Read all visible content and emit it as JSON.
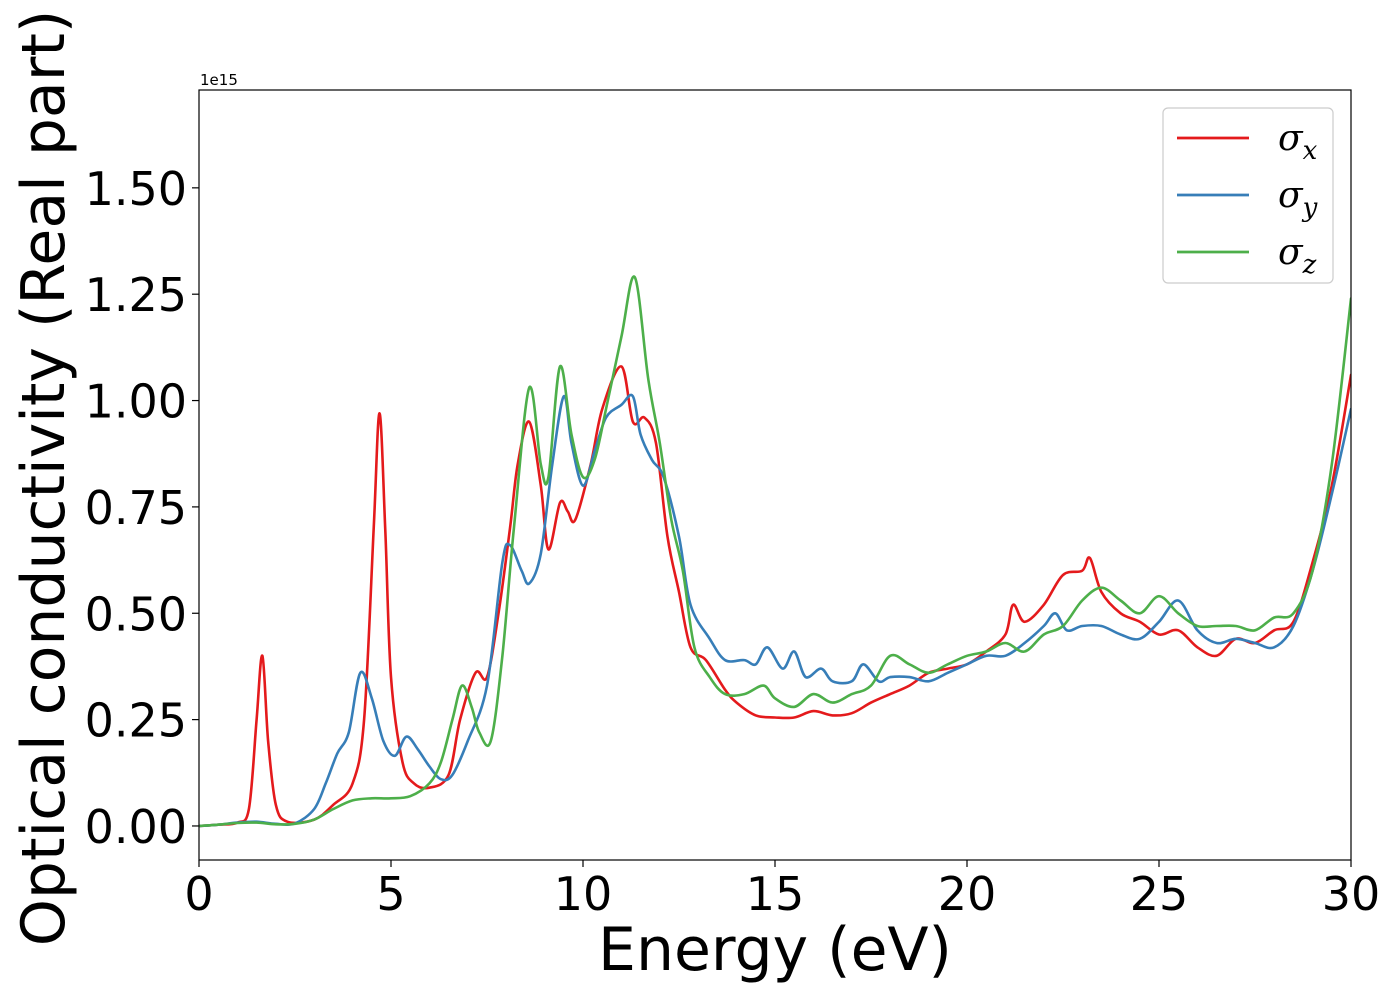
{
  "chart_data": {
    "type": "line",
    "xlabel": "Energy (eV)",
    "ylabel": "Optical conductivity (Real part)",
    "y_offset_label": "1e15",
    "xlim": [
      0,
      30
    ],
    "ylim": [
      -0.08,
      1.73
    ],
    "x_ticks": [
      0,
      5,
      10,
      15,
      20,
      25,
      30
    ],
    "x_tick_labels": [
      "0",
      "5",
      "10",
      "15",
      "20",
      "25",
      "30"
    ],
    "y_ticks": [
      0.0,
      0.25,
      0.5,
      0.75,
      1.0,
      1.25,
      1.5
    ],
    "y_tick_labels": [
      "0.00",
      "0.25",
      "0.50",
      "0.75",
      "1.00",
      "1.25",
      "1.50"
    ],
    "grid": false,
    "legend_position": "top-right",
    "series": [
      {
        "name": "σx",
        "symbol": "σ",
        "subscript": "x",
        "color": "#e41a1c",
        "points": [
          [
            0,
            0
          ],
          [
            0.5,
            0.003
          ],
          [
            1.0,
            0.008
          ],
          [
            1.3,
            0.04
          ],
          [
            1.5,
            0.25
          ],
          [
            1.65,
            0.4
          ],
          [
            1.8,
            0.2
          ],
          [
            2.0,
            0.05
          ],
          [
            2.3,
            0.01
          ],
          [
            3.0,
            0.015
          ],
          [
            3.5,
            0.05
          ],
          [
            4.0,
            0.1
          ],
          [
            4.3,
            0.25
          ],
          [
            4.55,
            0.7
          ],
          [
            4.7,
            0.97
          ],
          [
            4.85,
            0.7
          ],
          [
            5.0,
            0.35
          ],
          [
            5.3,
            0.15
          ],
          [
            5.6,
            0.1
          ],
          [
            6.0,
            0.09
          ],
          [
            6.5,
            0.12
          ],
          [
            6.8,
            0.25
          ],
          [
            7.2,
            0.36
          ],
          [
            7.5,
            0.35
          ],
          [
            7.8,
            0.5
          ],
          [
            8.1,
            0.7
          ],
          [
            8.3,
            0.85
          ],
          [
            8.6,
            0.95
          ],
          [
            8.9,
            0.8
          ],
          [
            9.1,
            0.65
          ],
          [
            9.4,
            0.76
          ],
          [
            9.6,
            0.74
          ],
          [
            9.8,
            0.72
          ],
          [
            10.2,
            0.85
          ],
          [
            10.5,
            0.98
          ],
          [
            11.0,
            1.08
          ],
          [
            11.3,
            0.95
          ],
          [
            11.6,
            0.96
          ],
          [
            11.9,
            0.9
          ],
          [
            12.2,
            0.68
          ],
          [
            12.5,
            0.55
          ],
          [
            12.8,
            0.42
          ],
          [
            13.2,
            0.39
          ],
          [
            13.7,
            0.32
          ],
          [
            14.0,
            0.29
          ],
          [
            14.5,
            0.26
          ],
          [
            15.0,
            0.255
          ],
          [
            15.5,
            0.255
          ],
          [
            16.0,
            0.27
          ],
          [
            16.5,
            0.26
          ],
          [
            17.0,
            0.265
          ],
          [
            17.5,
            0.29
          ],
          [
            18.0,
            0.31
          ],
          [
            18.5,
            0.33
          ],
          [
            19.0,
            0.36
          ],
          [
            19.5,
            0.37
          ],
          [
            20.0,
            0.38
          ],
          [
            20.5,
            0.41
          ],
          [
            21.0,
            0.45
          ],
          [
            21.2,
            0.52
          ],
          [
            21.5,
            0.48
          ],
          [
            22.0,
            0.52
          ],
          [
            22.5,
            0.59
          ],
          [
            23.0,
            0.6
          ],
          [
            23.2,
            0.63
          ],
          [
            23.5,
            0.55
          ],
          [
            24.0,
            0.5
          ],
          [
            24.5,
            0.48
          ],
          [
            25.0,
            0.45
          ],
          [
            25.5,
            0.46
          ],
          [
            26.0,
            0.42
          ],
          [
            26.5,
            0.4
          ],
          [
            27.0,
            0.44
          ],
          [
            27.5,
            0.43
          ],
          [
            28.0,
            0.46
          ],
          [
            28.5,
            0.48
          ],
          [
            29.0,
            0.62
          ],
          [
            29.5,
            0.8
          ],
          [
            30.0,
            1.06
          ]
        ]
      },
      {
        "name": "σy",
        "symbol": "σ",
        "subscript": "y",
        "color": "#377eb8",
        "points": [
          [
            0,
            0
          ],
          [
            0.5,
            0.003
          ],
          [
            1.0,
            0.008
          ],
          [
            1.5,
            0.01
          ],
          [
            2.0,
            0.005
          ],
          [
            2.5,
            0.006
          ],
          [
            3.0,
            0.04
          ],
          [
            3.3,
            0.1
          ],
          [
            3.6,
            0.17
          ],
          [
            3.9,
            0.22
          ],
          [
            4.2,
            0.36
          ],
          [
            4.5,
            0.3
          ],
          [
            4.8,
            0.2
          ],
          [
            5.1,
            0.165
          ],
          [
            5.4,
            0.21
          ],
          [
            5.7,
            0.18
          ],
          [
            6.0,
            0.14
          ],
          [
            6.3,
            0.11
          ],
          [
            6.6,
            0.12
          ],
          [
            7.0,
            0.2
          ],
          [
            7.5,
            0.33
          ],
          [
            7.9,
            0.62
          ],
          [
            8.1,
            0.66
          ],
          [
            8.4,
            0.6
          ],
          [
            8.6,
            0.57
          ],
          [
            8.9,
            0.64
          ],
          [
            9.2,
            0.85
          ],
          [
            9.5,
            1.01
          ],
          [
            9.7,
            0.9
          ],
          [
            10.0,
            0.8
          ],
          [
            10.3,
            0.88
          ],
          [
            10.6,
            0.96
          ],
          [
            11.0,
            0.99
          ],
          [
            11.3,
            1.01
          ],
          [
            11.5,
            0.92
          ],
          [
            11.8,
            0.86
          ],
          [
            12.1,
            0.82
          ],
          [
            12.5,
            0.68
          ],
          [
            12.8,
            0.52
          ],
          [
            13.3,
            0.44
          ],
          [
            13.7,
            0.39
          ],
          [
            14.2,
            0.39
          ],
          [
            14.5,
            0.38
          ],
          [
            14.8,
            0.42
          ],
          [
            15.2,
            0.37
          ],
          [
            15.5,
            0.41
          ],
          [
            15.8,
            0.35
          ],
          [
            16.2,
            0.37
          ],
          [
            16.5,
            0.34
          ],
          [
            17.0,
            0.34
          ],
          [
            17.3,
            0.38
          ],
          [
            17.7,
            0.34
          ],
          [
            18.0,
            0.35
          ],
          [
            18.5,
            0.35
          ],
          [
            19.0,
            0.34
          ],
          [
            19.5,
            0.36
          ],
          [
            20.0,
            0.38
          ],
          [
            20.5,
            0.4
          ],
          [
            21.0,
            0.4
          ],
          [
            21.5,
            0.43
          ],
          [
            22.0,
            0.47
          ],
          [
            22.3,
            0.5
          ],
          [
            22.6,
            0.46
          ],
          [
            23.0,
            0.47
          ],
          [
            23.5,
            0.47
          ],
          [
            24.0,
            0.45
          ],
          [
            24.5,
            0.44
          ],
          [
            25.0,
            0.48
          ],
          [
            25.5,
            0.53
          ],
          [
            26.0,
            0.46
          ],
          [
            26.5,
            0.43
          ],
          [
            27.0,
            0.44
          ],
          [
            27.5,
            0.43
          ],
          [
            28.0,
            0.42
          ],
          [
            28.5,
            0.47
          ],
          [
            29.0,
            0.6
          ],
          [
            29.5,
            0.78
          ],
          [
            30.0,
            0.98
          ]
        ]
      },
      {
        "name": "σz",
        "symbol": "σ",
        "subscript": "z",
        "color": "#4daf4a",
        "points": [
          [
            0,
            0
          ],
          [
            0.5,
            0.003
          ],
          [
            1.0,
            0.007
          ],
          [
            1.5,
            0.008
          ],
          [
            2.0,
            0.004
          ],
          [
            2.5,
            0.005
          ],
          [
            3.0,
            0.015
          ],
          [
            3.5,
            0.04
          ],
          [
            4.0,
            0.06
          ],
          [
            4.5,
            0.065
          ],
          [
            5.0,
            0.065
          ],
          [
            5.5,
            0.07
          ],
          [
            6.0,
            0.1
          ],
          [
            6.3,
            0.15
          ],
          [
            6.6,
            0.25
          ],
          [
            6.85,
            0.33
          ],
          [
            7.1,
            0.28
          ],
          [
            7.3,
            0.22
          ],
          [
            7.6,
            0.2
          ],
          [
            7.9,
            0.4
          ],
          [
            8.2,
            0.7
          ],
          [
            8.6,
            1.03
          ],
          [
            8.9,
            0.85
          ],
          [
            9.1,
            0.82
          ],
          [
            9.4,
            1.08
          ],
          [
            9.7,
            0.92
          ],
          [
            10.0,
            0.82
          ],
          [
            10.3,
            0.86
          ],
          [
            10.6,
            0.98
          ],
          [
            11.0,
            1.15
          ],
          [
            11.35,
            1.29
          ],
          [
            11.7,
            1.05
          ],
          [
            12.0,
            0.9
          ],
          [
            12.3,
            0.72
          ],
          [
            12.6,
            0.6
          ],
          [
            12.9,
            0.42
          ],
          [
            13.3,
            0.35
          ],
          [
            13.7,
            0.31
          ],
          [
            14.2,
            0.31
          ],
          [
            14.7,
            0.33
          ],
          [
            15.0,
            0.3
          ],
          [
            15.5,
            0.28
          ],
          [
            16.0,
            0.31
          ],
          [
            16.5,
            0.29
          ],
          [
            17.0,
            0.31
          ],
          [
            17.5,
            0.33
          ],
          [
            18.0,
            0.4
          ],
          [
            18.5,
            0.38
          ],
          [
            19.0,
            0.36
          ],
          [
            19.5,
            0.38
          ],
          [
            20.0,
            0.4
          ],
          [
            20.5,
            0.41
          ],
          [
            21.0,
            0.43
          ],
          [
            21.5,
            0.41
          ],
          [
            22.0,
            0.45
          ],
          [
            22.5,
            0.47
          ],
          [
            23.0,
            0.53
          ],
          [
            23.5,
            0.56
          ],
          [
            24.0,
            0.53
          ],
          [
            24.5,
            0.5
          ],
          [
            25.0,
            0.54
          ],
          [
            25.5,
            0.5
          ],
          [
            26.0,
            0.47
          ],
          [
            26.5,
            0.47
          ],
          [
            27.0,
            0.47
          ],
          [
            27.5,
            0.46
          ],
          [
            28.0,
            0.49
          ],
          [
            28.5,
            0.5
          ],
          [
            29.0,
            0.6
          ],
          [
            29.5,
            0.85
          ],
          [
            30.0,
            1.24
          ]
        ]
      }
    ]
  }
}
